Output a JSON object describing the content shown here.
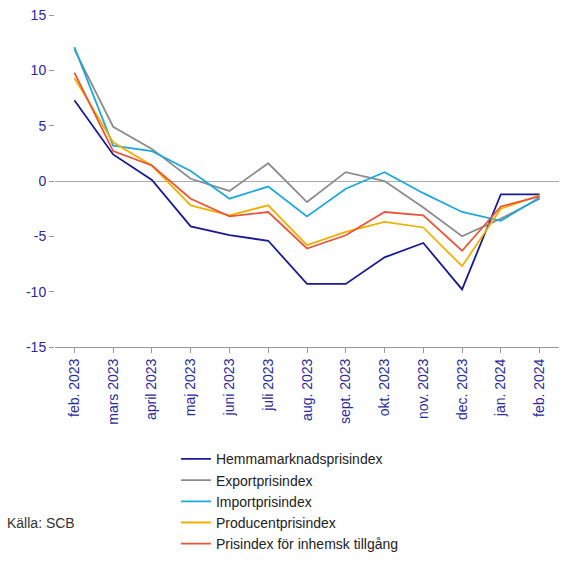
{
  "chart_data": {
    "type": "line",
    "categories": [
      "feb. 2023",
      "mars 2023",
      "april 2023",
      "maj 2023",
      "juni 2023",
      "juli 2023",
      "aug. 2023",
      "sept. 2023",
      "okt. 2023",
      "nov. 2023",
      "dec. 2023",
      "jan. 2024",
      "feb. 2024"
    ],
    "series": [
      {
        "name": "Hemmamarknadsprisindex",
        "color": "#1a1a93",
        "values": [
          7.3,
          2.4,
          0.1,
          -4.1,
          -4.9,
          -5.4,
          -9.3,
          -9.3,
          -6.9,
          -5.6,
          -9.8,
          -1.2,
          -1.2
        ]
      },
      {
        "name": "Exportprisindex",
        "color": "#8c8c8c",
        "values": [
          11.9,
          4.9,
          2.9,
          0.2,
          -0.9,
          1.6,
          -1.9,
          0.8,
          0.0,
          -2.4,
          -5.0,
          -3.4,
          -1.6
        ]
      },
      {
        "name": "Importprisindex",
        "color": "#1fa8dc",
        "values": [
          12.1,
          3.2,
          2.7,
          0.9,
          -1.6,
          -0.5,
          -3.2,
          -0.7,
          0.8,
          -1.1,
          -2.8,
          -3.6,
          -1.5
        ]
      },
      {
        "name": "Producentprisindex",
        "color": "#f0b000",
        "values": [
          9.3,
          3.5,
          1.4,
          -2.2,
          -3.1,
          -2.2,
          -5.8,
          -4.6,
          -3.7,
          -4.2,
          -7.7,
          -2.5,
          -1.3
        ]
      },
      {
        "name": "Prisindex för inhemsk tillgång",
        "color": "#e8553a",
        "values": [
          9.8,
          2.7,
          1.4,
          -1.6,
          -3.2,
          -2.8,
          -6.1,
          -4.9,
          -2.8,
          -3.1,
          -6.3,
          -2.3,
          -1.4
        ]
      }
    ],
    "ylim": [
      -15,
      15
    ],
    "yticks": [
      -15,
      -10,
      -5,
      0,
      5,
      10,
      15
    ],
    "grid": false,
    "legend": "bottom",
    "annotations": [
      "Källa: SCB"
    ]
  }
}
